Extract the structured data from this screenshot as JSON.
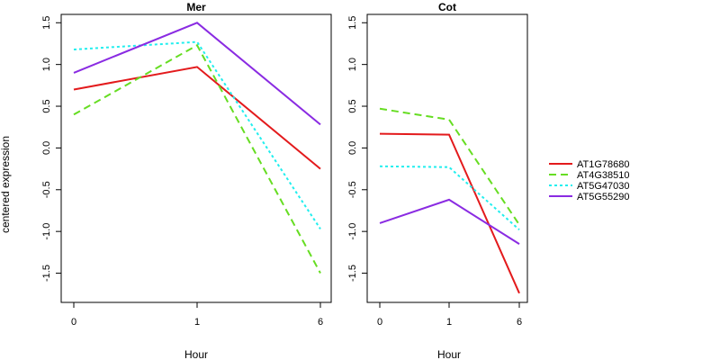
{
  "chart_data": {
    "type": "line",
    "ylabel": "centered expression",
    "legend_position": "right",
    "series_styles": [
      {
        "name": "AT1G78680",
        "color": "#e31a1c",
        "dash": "solid"
      },
      {
        "name": "AT4G38510",
        "color": "#66dd22",
        "dash": "dashed"
      },
      {
        "name": "AT5G47030",
        "color": "#22eeee",
        "dash": "dotted"
      },
      {
        "name": "AT5G55290",
        "color": "#8a2be2",
        "dash": "solid"
      }
    ],
    "panels": [
      {
        "title": "Mer",
        "xlabel": "Hour",
        "x_ticks": [
          "0",
          "1",
          "6"
        ],
        "ylim": [
          -1.85,
          1.6
        ],
        "y_ticks": [
          "-1.5",
          "-1.0",
          "-0.5",
          "0.0",
          "0.5",
          "1.0",
          "1.5"
        ],
        "series": [
          {
            "name": "AT1G78680",
            "values": [
              0.7,
              0.97,
              -0.25
            ]
          },
          {
            "name": "AT4G38510",
            "values": [
              0.4,
              1.23,
              -1.5
            ]
          },
          {
            "name": "AT5G47030",
            "values": [
              1.18,
              1.27,
              -0.97
            ]
          },
          {
            "name": "AT5G55290",
            "values": [
              0.9,
              1.5,
              0.28
            ]
          }
        ]
      },
      {
        "title": "Cot",
        "xlabel": "Hour",
        "x_ticks": [
          "0",
          "1",
          "6"
        ],
        "ylim": [
          -1.85,
          1.6
        ],
        "y_ticks": [
          "-1.5",
          "-1.0",
          "-0.5",
          "0.0",
          "0.5",
          "1.0",
          "1.5"
        ],
        "series": [
          {
            "name": "AT1G78680",
            "values": [
              0.17,
              0.16,
              -1.74
            ]
          },
          {
            "name": "AT4G38510",
            "values": [
              0.47,
              0.34,
              -0.92
            ]
          },
          {
            "name": "AT5G47030",
            "values": [
              -0.22,
              -0.23,
              -0.98
            ]
          },
          {
            "name": "AT5G55290",
            "values": [
              -0.9,
              -0.62,
              -1.15
            ]
          }
        ]
      }
    ]
  }
}
